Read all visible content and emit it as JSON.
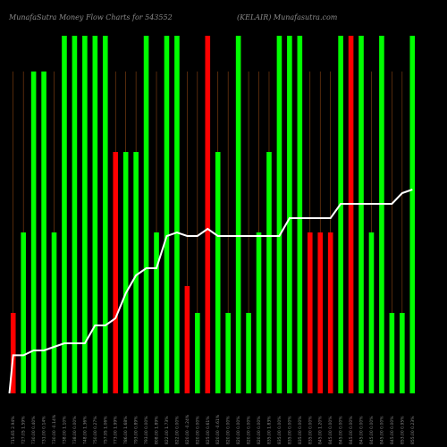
{
  "chart_data": {
    "type": "bar",
    "title_left": "MunafaSutra Money Flow Charts for 543552",
    "title_right": "(KELAIR) Munafasutra.com",
    "categories": [
      "Fri 03 Jan 2025 5:54",
      "Thu 02 Jan 2025 5:54",
      "Wed 01 Jan 2025 5:54",
      "Tue 31 Dec 2024 5:54",
      "Mon 30 Dec 2024 5:54",
      "Fri 27 Dec 2024 5:54",
      "Thu 26 Dec 2024 5:54",
      "Tue 24 Dec 2024 5:54",
      "Mon 23 Dec 2024 5:54",
      "Fri 20 Dec 2024 5:54",
      "Thu 19 Dec 2024 5:54",
      "Wed 18 Dec 2024 5:54",
      "Tue 17 Dec 2024 5:54",
      "Mon 16 Dec 2024 5:54",
      "Fri 13 Dec 2024 5:54",
      "Thu 12 Dec 2024 5:54",
      "Wed 11 Dec 2024 5:54",
      "Tue 10 Dec 2024 5:54",
      "Mon 09 Dec 2024 5:54",
      "Fri 06 Dec 2024 5:54",
      "Thu 05 Dec 2024 5:54",
      "Wed 04 Dec 2024 5:54",
      "Tue 03 Dec 2024 5:54",
      "Mon 02 Dec 2024 5:54",
      "Fri 29 Nov 2024 5:54",
      "Thu 28 Nov 2024 5:54",
      "Wed 27 Nov 2024 5:54",
      "Tue 26 Nov 2024 5:54",
      "Mon 25 Nov 2024 5:54",
      "Fri 22 Nov 2024 5:54",
      "Thu 21 Nov 2024 5:54",
      "Wed 20 Nov 2024 5:54",
      "Tue 19 Nov 2024 5:54",
      "Mon 18 Nov 2024 5:54",
      "Thu 14 Nov 2024 5:54",
      "Wed 13 Nov 2024 5:54",
      "Tue 12 Nov 2024 5:54",
      "Mon 11 Nov 2024 5:54",
      "Fri 08 Nov 2024 5:54",
      "Thu 07 Nov 2024 5:54"
    ],
    "tick_labels": [
      "715.65 2.94%",
      "727.05 1.59%",
      "730.00 0.40%",
      "731.00 0.14%",
      "730.00 -0.14%",
      "738.00 1.10%",
      "738.00 0.00%",
      "748.00 1.36%",
      "750.00 0.27%",
      "757.95 1.06%",
      "773.00 1.99%",
      "786.00 1.68%",
      "793.00 0.89%",
      "793.00 0.00%",
      "808.00 1.89%",
      "822.00 1.73%",
      "822.00 0.00%",
      "820.00 -0.24%",
      "820.00 0.00%",
      "825.00 0.61%",
      "820.00 -0.61%",
      "820.00 0.00%",
      "820.00 0.00%",
      "820.00 0.00%",
      "820.00 0.00%",
      "835.00 1.83%",
      "835.00 0.00%",
      "835.00 0.00%",
      "835.00 0.00%",
      "835.00 0.00%",
      "845.00 1.20%",
      "845.00 0.00%",
      "845.00 0.00%",
      "845.00 0.00%",
      "845.00 0.00%",
      "845.00 0.00%",
      "845.00 0.00%",
      "845.00 0.00%",
      "853.00 0.95%",
      "855.00 0.23%"
    ],
    "bar_values": [
      0.45,
      0.9,
      1.8,
      1.8,
      0.9,
      2.0,
      2.0,
      2.0,
      2.0,
      2.0,
      1.35,
      1.35,
      1.35,
      2.0,
      0.9,
      2.0,
      2.0,
      0.6,
      0.45,
      2.0,
      1.35,
      0.45,
      2.0,
      0.45,
      0.9,
      1.35,
      2.0,
      2.0,
      2.0,
      0.9,
      0.9,
      0.9,
      2.0,
      2.0,
      2.0,
      0.9,
      2.0,
      0.45,
      0.45,
      2.0
    ],
    "bar_colors": [
      "red",
      "green",
      "green",
      "green",
      "green",
      "green",
      "green",
      "green",
      "green",
      "green",
      "red",
      "green",
      "green",
      "green",
      "green",
      "green",
      "green",
      "red",
      "green",
      "red",
      "green",
      "green",
      "green",
      "green",
      "green",
      "green",
      "green",
      "green",
      "green",
      "red",
      "red",
      "red",
      "green",
      "red",
      "green",
      "green",
      "green",
      "green",
      "green",
      "green"
    ],
    "price_line": [
      715.65,
      715.65,
      717,
      717,
      718,
      719,
      719,
      719,
      724,
      724,
      726,
      733,
      738,
      740,
      740,
      749,
      750,
      749,
      749,
      751,
      749,
      749,
      749,
      749,
      749,
      749,
      749,
      754,
      754,
      754,
      754,
      754,
      758,
      758,
      758,
      758,
      758,
      758,
      761,
      762
    ],
    "price_range": [
      705,
      795
    ],
    "colors": {
      "green": "#00ff00",
      "red": "#ff0000",
      "line": "#ffffff",
      "grid": "#8b4513",
      "text": "#8a8a8a"
    }
  }
}
